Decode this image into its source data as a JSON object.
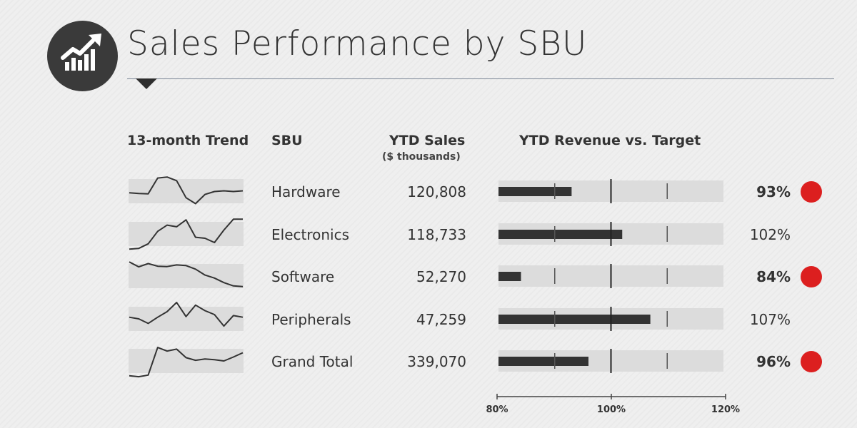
{
  "header": {
    "title": "Sales Performance by SBU",
    "logo_icon": "rising-bar-chart-icon"
  },
  "columns": {
    "trend": "13-month Trend",
    "sbu": "SBU",
    "sales": "YTD Sales",
    "sales_unit": "($ thousands)",
    "bullet": "YTD Revenue vs. Target"
  },
  "colors": {
    "bar": "#333333",
    "band": "#dcdcdc",
    "alert": "#dc1f1f",
    "target": "#222222"
  },
  "chart_data": {
    "type": "table",
    "title": "Sales Performance by SBU",
    "bullet_axis": {
      "min": 80,
      "max": 120,
      "target": 100,
      "reference_ticks": [
        90,
        110
      ],
      "tick_labels": [
        "80%",
        "100%",
        "120%"
      ],
      "tick_values": [
        80,
        100,
        120
      ]
    },
    "rows": [
      {
        "sbu": "Hardware",
        "ytd_sales": "120,808",
        "pct_label": "93%",
        "pct": 93,
        "alert": true,
        "trend": [
          0.45,
          0.43,
          0.42,
          0.9,
          0.93,
          0.82,
          0.3,
          0.12,
          0.4,
          0.49,
          0.51,
          0.49,
          0.51
        ]
      },
      {
        "sbu": "Electronics",
        "ytd_sales": "118,733",
        "pct_label": "102%",
        "pct": 102,
        "alert": false,
        "trend": [
          0.04,
          0.06,
          0.2,
          0.58,
          0.77,
          0.72,
          0.93,
          0.4,
          0.37,
          0.24,
          0.62,
          0.95,
          0.95
        ]
      },
      {
        "sbu": "Software",
        "ytd_sales": "52,270",
        "pct_label": "84%",
        "pct": 84,
        "alert": true,
        "trend": [
          0.93,
          0.78,
          0.88,
          0.8,
          0.79,
          0.84,
          0.82,
          0.71,
          0.53,
          0.44,
          0.3,
          0.2,
          0.18
        ]
      },
      {
        "sbu": "Peripherals",
        "ytd_sales": "47,259",
        "pct_label": "107%",
        "pct": 107,
        "alert": false,
        "trend": [
          0.55,
          0.5,
          0.36,
          0.55,
          0.72,
          1.0,
          0.57,
          0.92,
          0.75,
          0.63,
          0.28,
          0.6,
          0.55
        ]
      },
      {
        "sbu": "Grand Total",
        "ytd_sales": "339,070",
        "pct_label": "96%",
        "pct": 96,
        "alert": true,
        "trend": [
          0.05,
          0.02,
          0.07,
          0.91,
          0.8,
          0.86,
          0.6,
          0.52,
          0.56,
          0.54,
          0.5,
          0.62,
          0.75
        ]
      }
    ]
  }
}
